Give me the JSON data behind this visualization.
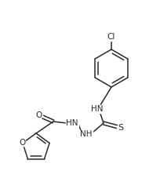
{
  "figsize": [
    2.04,
    2.27
  ],
  "dpi": 100,
  "bg_color": "#ffffff",
  "line_color": "#2a2a2a",
  "line_width": 1.1,
  "font_size": 7.5,
  "font_family": "DejaVu Sans",
  "xlim": [
    0,
    204
  ],
  "ylim": [
    0,
    227
  ]
}
